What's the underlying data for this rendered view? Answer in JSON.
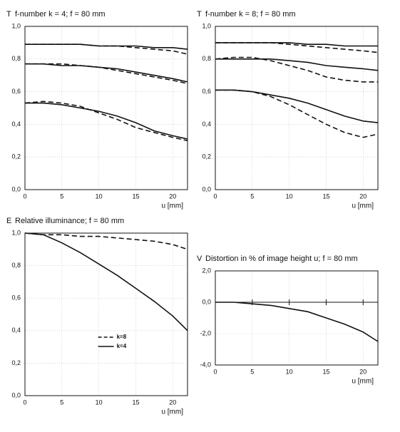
{
  "chart_data": [
    {
      "type": "line",
      "title": "f-number k = 4; f = 80 mm",
      "y_label": "T",
      "x_label": "u [mm]",
      "x": [
        0,
        2.5,
        5,
        7.5,
        10,
        12.5,
        15,
        17.5,
        20,
        22
      ],
      "xlim": [
        0,
        22
      ],
      "xticks": [
        0,
        5,
        10,
        15,
        20
      ],
      "ylim": [
        0,
        1
      ],
      "yticks": [
        {
          "value": 0,
          "label": "0,0"
        },
        {
          "value": 0.2,
          "label": "0,2"
        },
        {
          "value": 0.4,
          "label": "0,4"
        },
        {
          "value": 0.6,
          "label": "0,6"
        },
        {
          "value": 0.8,
          "label": "0,8"
        },
        {
          "value": 1,
          "label": "1,0"
        }
      ],
      "grid": true,
      "series": [
        {
          "color": "#111",
          "dashed": false,
          "values": [
            0.89,
            0.89,
            0.89,
            0.89,
            0.88,
            0.88,
            0.88,
            0.87,
            0.87,
            0.86
          ]
        },
        {
          "color": "#111",
          "dashed": true,
          "values": [
            0.89,
            0.89,
            0.89,
            0.89,
            0.88,
            0.88,
            0.87,
            0.86,
            0.85,
            0.83
          ]
        },
        {
          "color": "#111",
          "dashed": false,
          "values": [
            0.77,
            0.77,
            0.76,
            0.76,
            0.75,
            0.74,
            0.72,
            0.7,
            0.68,
            0.66
          ]
        },
        {
          "color": "#111",
          "dashed": true,
          "values": [
            0.77,
            0.77,
            0.77,
            0.76,
            0.75,
            0.73,
            0.71,
            0.69,
            0.67,
            0.65
          ]
        },
        {
          "color": "#111",
          "dashed": false,
          "values": [
            0.53,
            0.53,
            0.52,
            0.5,
            0.48,
            0.45,
            0.41,
            0.36,
            0.33,
            0.31
          ]
        },
        {
          "color": "#111",
          "dashed": true,
          "values": [
            0.53,
            0.54,
            0.53,
            0.51,
            0.47,
            0.43,
            0.38,
            0.35,
            0.32,
            0.3
          ]
        }
      ]
    },
    {
      "type": "line",
      "title": "f-number k = 8; f = 80 mm",
      "y_label": "T",
      "x_label": "u [mm]",
      "x": [
        0,
        2.5,
        5,
        7.5,
        10,
        12.5,
        15,
        17.5,
        20,
        22
      ],
      "xlim": [
        0,
        22
      ],
      "xticks": [
        0,
        5,
        10,
        15,
        20
      ],
      "ylim": [
        0,
        1
      ],
      "yticks": [
        {
          "value": 0,
          "label": "0,0"
        },
        {
          "value": 0.2,
          "label": "0,2"
        },
        {
          "value": 0.4,
          "label": "0,4"
        },
        {
          "value": 0.6,
          "label": "0,6"
        },
        {
          "value": 0.8,
          "label": "0,8"
        },
        {
          "value": 1,
          "label": "1,0"
        }
      ],
      "grid": true,
      "series": [
        {
          "color": "#111",
          "dashed": false,
          "values": [
            0.9,
            0.9,
            0.9,
            0.9,
            0.9,
            0.89,
            0.89,
            0.88,
            0.88,
            0.88
          ]
        },
        {
          "color": "#111",
          "dashed": true,
          "values": [
            0.9,
            0.9,
            0.9,
            0.9,
            0.89,
            0.88,
            0.87,
            0.86,
            0.85,
            0.84
          ]
        },
        {
          "color": "#111",
          "dashed": false,
          "values": [
            0.8,
            0.8,
            0.8,
            0.8,
            0.79,
            0.78,
            0.76,
            0.75,
            0.74,
            0.73
          ]
        },
        {
          "color": "#111",
          "dashed": true,
          "values": [
            0.8,
            0.81,
            0.81,
            0.79,
            0.76,
            0.73,
            0.69,
            0.67,
            0.66,
            0.66
          ]
        },
        {
          "color": "#111",
          "dashed": false,
          "values": [
            0.61,
            0.61,
            0.6,
            0.58,
            0.56,
            0.53,
            0.49,
            0.45,
            0.42,
            0.41
          ]
        },
        {
          "color": "#111",
          "dashed": true,
          "values": [
            0.61,
            0.61,
            0.6,
            0.57,
            0.52,
            0.46,
            0.4,
            0.35,
            0.32,
            0.34
          ]
        }
      ]
    },
    {
      "type": "line",
      "title": "Relative illuminance; f = 80 mm",
      "y_label": "E",
      "x_label": "u [mm]",
      "x": [
        0,
        2.5,
        5,
        7.5,
        10,
        12.5,
        15,
        17.5,
        20,
        22
      ],
      "xlim": [
        0,
        22
      ],
      "xticks": [
        0,
        5,
        10,
        15,
        20
      ],
      "ylim": [
        0,
        1
      ],
      "yticks": [
        {
          "value": 0,
          "label": "0,0"
        },
        {
          "value": 0.2,
          "label": "0,2"
        },
        {
          "value": 0.4,
          "label": "0,4"
        },
        {
          "value": 0.6,
          "label": "0,6"
        },
        {
          "value": 0.8,
          "label": "0,8"
        },
        {
          "value": 1,
          "label": "1,0"
        }
      ],
      "grid": true,
      "legend": "lower center",
      "series": [
        {
          "name": "k=8",
          "color": "#111",
          "dashed": true,
          "values": [
            1.0,
            0.99,
            0.99,
            0.98,
            0.98,
            0.97,
            0.96,
            0.95,
            0.93,
            0.9
          ]
        },
        {
          "name": "k=4",
          "color": "#111",
          "dashed": false,
          "values": [
            1.0,
            0.99,
            0.94,
            0.88,
            0.81,
            0.74,
            0.66,
            0.58,
            0.49,
            0.4
          ]
        }
      ]
    },
    {
      "type": "line",
      "title": "Distortion in % of image height u; f = 80 mm",
      "y_label": "V",
      "x_label": "u [mm]",
      "x": [
        0,
        2.5,
        5,
        7.5,
        10,
        12.5,
        15,
        17.5,
        20,
        22
      ],
      "xlim": [
        0,
        22
      ],
      "xticks": [
        0,
        5,
        10,
        15,
        20
      ],
      "ylim": [
        -4,
        2
      ],
      "yticks": [
        {
          "value": -4,
          "label": "-4,0"
        },
        {
          "value": -2,
          "label": "-2,0"
        },
        {
          "value": 0,
          "label": "0,0"
        },
        {
          "value": 2,
          "label": "2,0"
        }
      ],
      "grid": true,
      "series": [
        {
          "color": "#111",
          "dashed": false,
          "values": [
            0,
            0,
            -0.1,
            -0.2,
            -0.4,
            -0.6,
            -1.0,
            -1.4,
            -1.9,
            -2.5
          ]
        }
      ]
    }
  ]
}
